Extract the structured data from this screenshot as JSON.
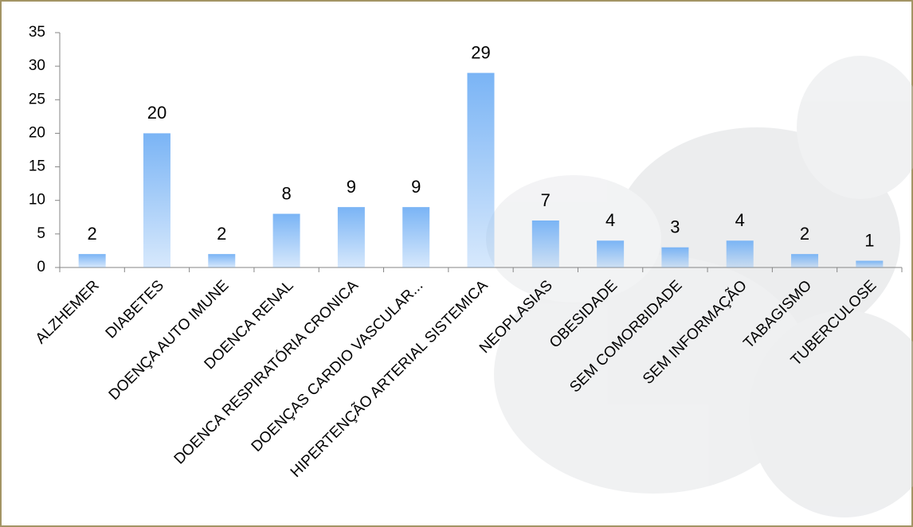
{
  "chart_data": {
    "type": "bar",
    "categories": [
      "ALZHEMER",
      "DIABETES",
      "DOENÇA AUTO IMUNE",
      "DOENCA RENAL",
      "DOENCA RESPIRATÓRIA CRONICA",
      "DOENÇAS CARDIO VASCULAR...",
      "HIPERTENÇÃO ARTERIAL SISTEMICA",
      "NEOPLASIAS",
      "OBESIDADE",
      "SEM COMORBIDADE",
      "SEM INFORMAÇÃO",
      "TABAGISMO",
      "TUBERCULOSE"
    ],
    "values": [
      2,
      20,
      2,
      8,
      9,
      9,
      29,
      7,
      4,
      3,
      4,
      2,
      1
    ],
    "color": "#7ab4f5",
    "ylim": [
      0,
      35
    ],
    "yticks": [
      0,
      5,
      10,
      15,
      20,
      25,
      30,
      35
    ],
    "grid": false
  }
}
